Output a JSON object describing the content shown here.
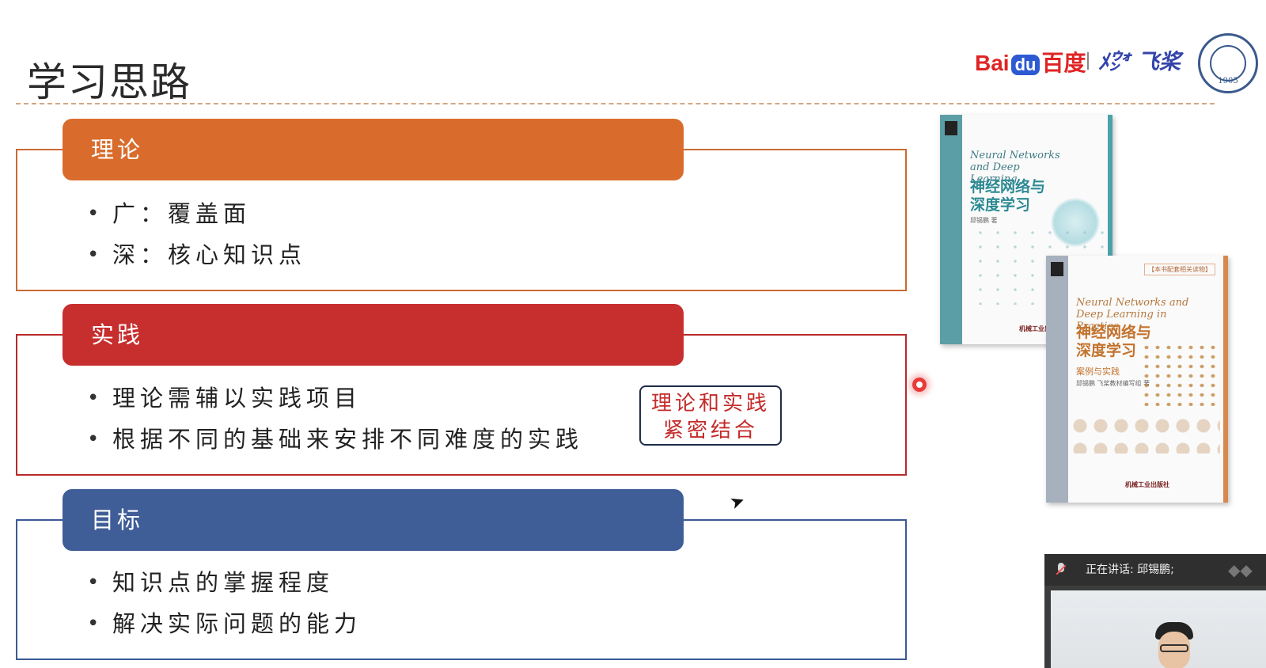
{
  "slide": {
    "title": "学习思路"
  },
  "logos": {
    "baidu_pre": "Bai",
    "baidu_du": "du",
    "baidu_post": "百度",
    "feijiang": "ﾒ㌆ 飞桨",
    "fudan_year": "1905",
    "colors": {
      "baidu_red": "#e02424",
      "baidu_blue": "#2d5ad2",
      "fudan_blue": "#3a5a8c"
    }
  },
  "sections": [
    {
      "title": "理论",
      "color": "#d96c2c",
      "border_color": "#c96a33",
      "bullets": [
        "广：覆盖面",
        "深：核心知识点"
      ]
    },
    {
      "title": "实践",
      "color": "#c72e2e",
      "border_color": "#b82a2a",
      "bullets": [
        "理论需辅以实践项目",
        "根据不同的基础来安排不同难度的实践"
      ]
    },
    {
      "title": "目标",
      "color": "#3f5d97",
      "border_color": "#3a5a95",
      "bullets": [
        "知识点的掌握程度",
        "解决实际问题的能力"
      ]
    }
  ],
  "callout": {
    "line1": "理论和实践",
    "line2": "紧密结合"
  },
  "books": [
    {
      "english_title": "Neural Networks and Deep Learning",
      "chinese_title": "神经网络与深度学习",
      "author": "邱锡鹏 著",
      "publisher": "机械工业出版社",
      "accent_color": "#4aa3a8"
    },
    {
      "series": "【本书配套相关读物】",
      "english_title": "Neural Networks and Deep Learning in Practice",
      "chinese_title": "神经网络与深度学习",
      "subtitle": "案例与实践",
      "author": "邱锡鹏 飞桨教材编写组 著",
      "publisher": "机械工业出版社",
      "accent_color": "#d7884d"
    }
  ],
  "meeting": {
    "speaking_label": "正在讲话: 邱锡鹏;",
    "icons": [
      "mic-muted-icon",
      "layout-icon"
    ]
  }
}
